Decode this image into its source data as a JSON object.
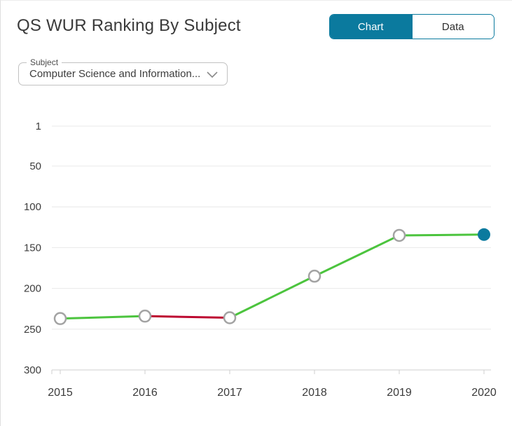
{
  "header": {
    "title": "QS WUR Ranking By Subject",
    "toggle": {
      "chart_label": "Chart",
      "data_label": "Data",
      "active": "Chart"
    }
  },
  "subject": {
    "label": "Subject",
    "value": "Computer Science and Information..."
  },
  "colors": {
    "accent_teal": "#0b7a9e",
    "improve_green": "#4cc43e",
    "decline_red": "#bd0a31",
    "grid": "#e8e8e8",
    "axis": "#cfcfcf",
    "marker_stroke": "#a3a3a3",
    "marker_fill": "#ffffff",
    "text": "#3d3d3d"
  },
  "chart_data": {
    "type": "line",
    "title": "QS WUR Ranking By Subject",
    "xlabel": "",
    "ylabel": "",
    "x": [
      2015,
      2016,
      2017,
      2018,
      2019,
      2020
    ],
    "series": [
      {
        "name": "Computer Science and Information Systems ranking",
        "values": [
          237,
          234,
          236,
          185,
          135,
          134
        ]
      }
    ],
    "segment_colors": [
      "#4cc43e",
      "#bd0a31",
      "#4cc43e",
      "#4cc43e",
      "#4cc43e"
    ],
    "segment_meaning": "green = rank improved or flat, red = rank declined",
    "y_ticks": [
      1,
      50,
      100,
      150,
      200,
      250,
      300
    ],
    "ylim": [
      1,
      300
    ],
    "y_axis_inverted": true,
    "grid": true,
    "legend": "none",
    "marker_style": "open-circle",
    "last_point_color": "#0b7a9e"
  }
}
